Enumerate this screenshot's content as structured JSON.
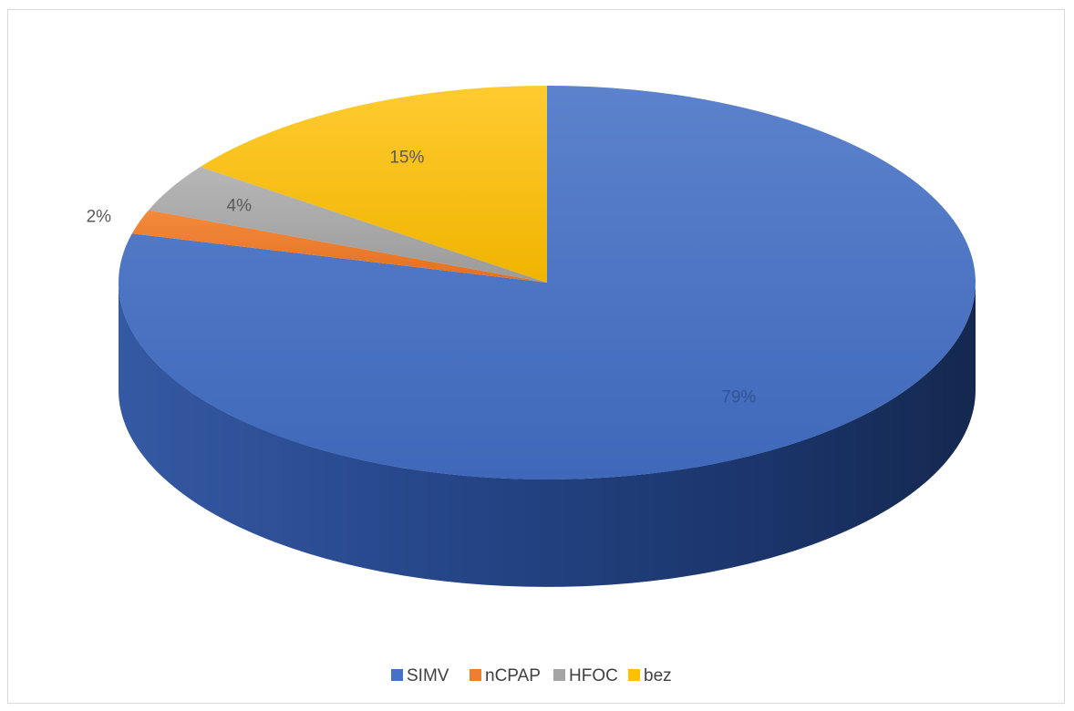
{
  "chart_data": {
    "type": "pie",
    "style": "3d",
    "categories": [
      "SIMV",
      "nCPAP",
      "HFOC",
      "bez"
    ],
    "values": [
      79,
      2,
      4,
      15
    ],
    "labels": [
      "79%",
      "2%",
      "4%",
      "15%"
    ],
    "colors": [
      "#4472c4",
      "#ed7d31",
      "#a5a5a5",
      "#ffc000"
    ],
    "label_colors": [
      "#2f5597",
      "#595959",
      "#595959",
      "#595959"
    ],
    "legend_position": "bottom",
    "title": ""
  }
}
